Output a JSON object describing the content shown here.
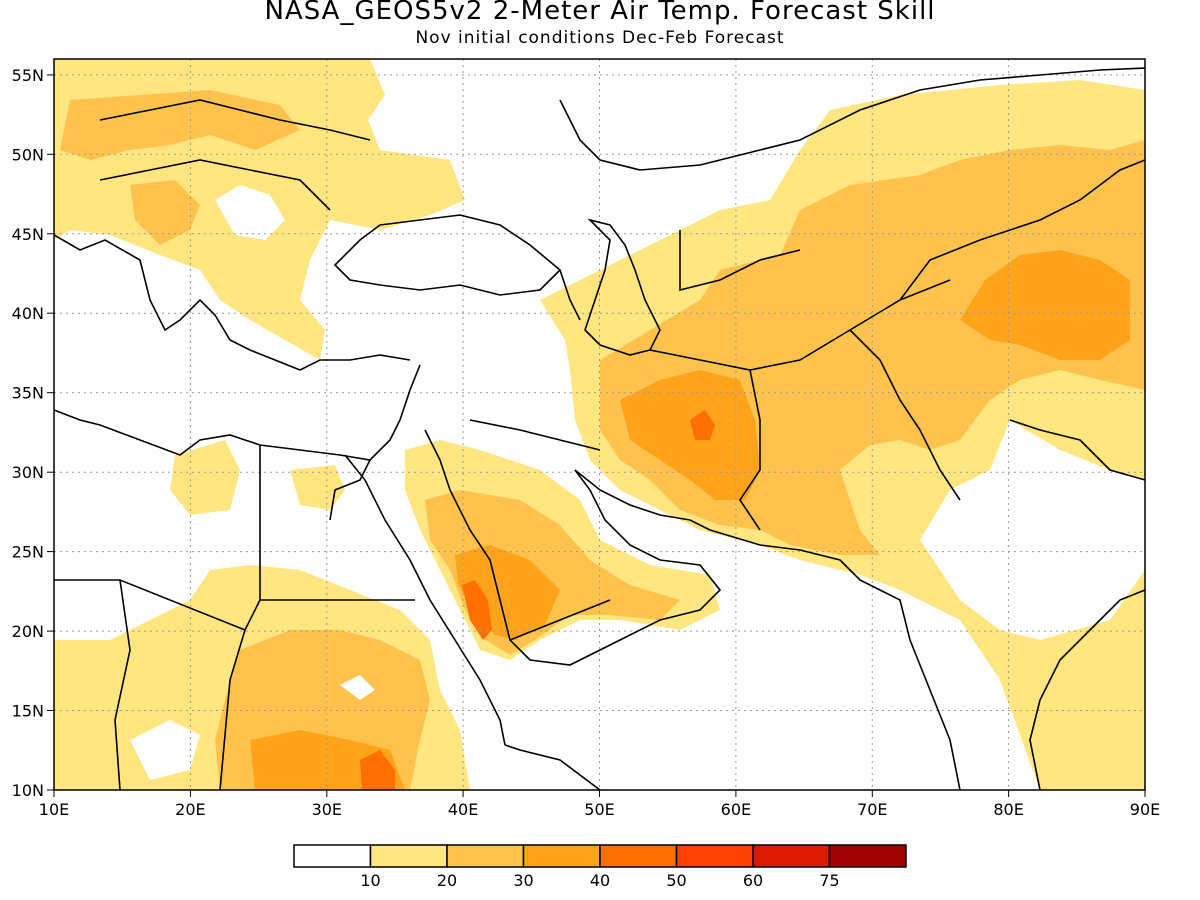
{
  "header": {
    "title": "NASA_GEOS5v2 2-Meter Air Temp. Forecast Skill",
    "subtitle": "Nov initial conditions  Dec-Feb Forecast"
  },
  "map": {
    "lon_range": [
      10,
      90
    ],
    "lat_range": [
      10,
      56
    ],
    "x_ticks": [
      "10E",
      "20E",
      "30E",
      "40E",
      "50E",
      "60E",
      "70E",
      "80E",
      "90E"
    ],
    "y_ticks": [
      "10N",
      "15N",
      "20N",
      "25N",
      "30N",
      "35N",
      "40N",
      "45N",
      "50N",
      "55N"
    ],
    "grid": true,
    "colors": {
      "c1": "#ffe680",
      "c2": "#ffc34d",
      "c3": "#ffa31a",
      "c4": "#ff7000",
      "c5": "#ff4000"
    }
  },
  "legend": {
    "colors": [
      "#ffffff",
      "#ffe680",
      "#ffc34d",
      "#ffa31a",
      "#ff7000",
      "#ff4000",
      "#dd1a00",
      "#a00000"
    ],
    "labels": [
      "10",
      "20",
      "30",
      "40",
      "50",
      "60",
      "75"
    ]
  }
}
